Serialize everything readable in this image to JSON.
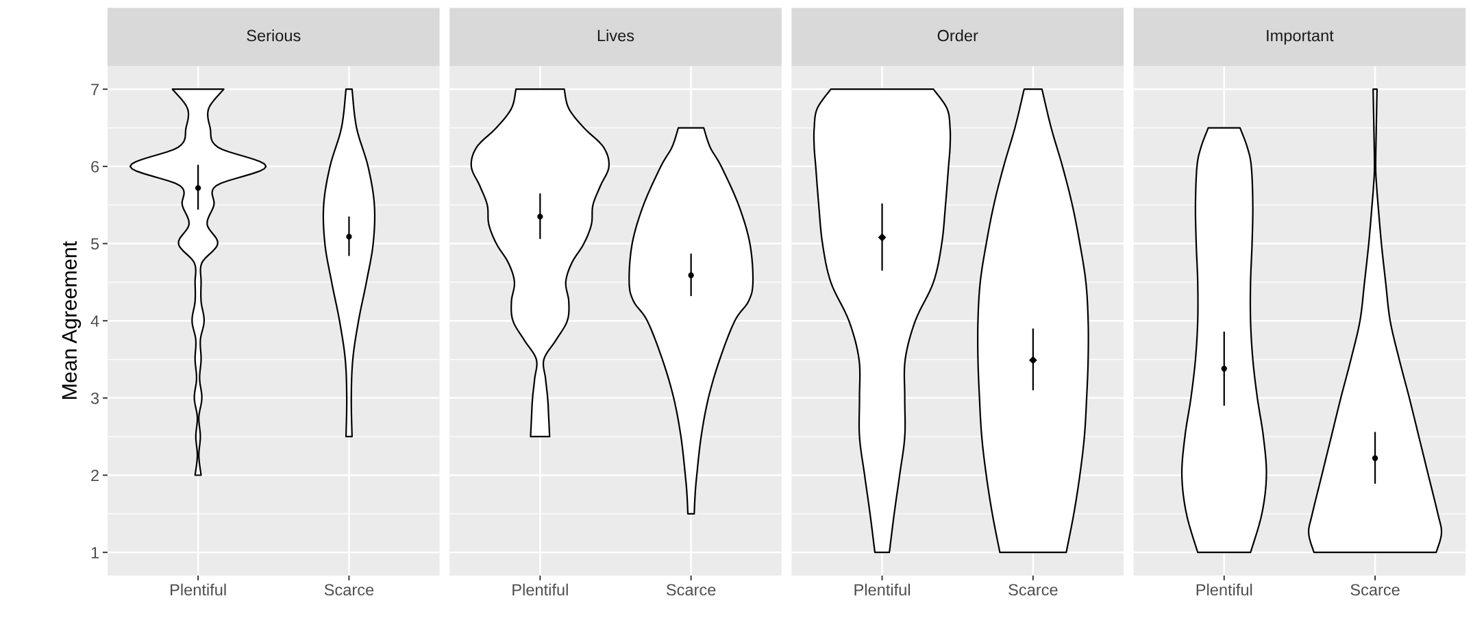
{
  "chart_data": [
    {
      "type": "scatter",
      "title": "Serious",
      "ylabel": "Mean Agreement",
      "categories": [
        "Plentiful",
        "Scarce"
      ],
      "ylim": [
        0.7,
        7.3
      ],
      "yticks": [
        1,
        2,
        3,
        4,
        5,
        6,
        7
      ],
      "grid": true,
      "marker": "circle",
      "color": "#000000",
      "values": [
        5.72,
        5.09
      ],
      "errors": [
        [
          5.44,
          6.02
        ],
        [
          4.84,
          5.35
        ]
      ]
    },
    {
      "type": "scatter",
      "title": "Lives",
      "categories": [
        "Plentiful",
        "Scarce"
      ],
      "ylim": [
        0.7,
        7.3
      ],
      "yticks": [
        1,
        2,
        3,
        4,
        5,
        6,
        7
      ],
      "grid": true,
      "tick_labels": "x",
      "marker": "circle",
      "color": "#000000",
      "values": [
        5.35,
        4.59
      ],
      "errors": [
        [
          5.06,
          5.65
        ],
        [
          4.32,
          4.87
        ]
      ]
    },
    {
      "type": "scatter",
      "title": "Order",
      "categories": [
        "Plentiful",
        "Scarce"
      ],
      "ylim": [
        0.7,
        7.3
      ],
      "yticks": [
        1,
        2,
        3,
        4,
        5,
        6,
        7
      ],
      "grid": true,
      "tick_labels": "x",
      "marker": "diamond",
      "color": "#000000",
      "values": [
        5.08,
        3.49
      ],
      "errors": [
        [
          4.65,
          5.52
        ],
        [
          3.1,
          3.9
        ]
      ]
    },
    {
      "type": "scatter",
      "title": "Important",
      "categories": [
        "Plentiful",
        "Scarce"
      ],
      "ylim": [
        0.7,
        7.3
      ],
      "yticks": [
        1,
        2,
        3,
        4,
        5,
        6,
        7
      ],
      "grid": true,
      "tick_labels": "x",
      "marker": "circle",
      "color": "#000000",
      "values": [
        3.38,
        2.22
      ],
      "errors": [
        [
          2.9,
          3.86
        ],
        [
          1.89,
          2.56
        ]
      ]
    }
  ]
}
